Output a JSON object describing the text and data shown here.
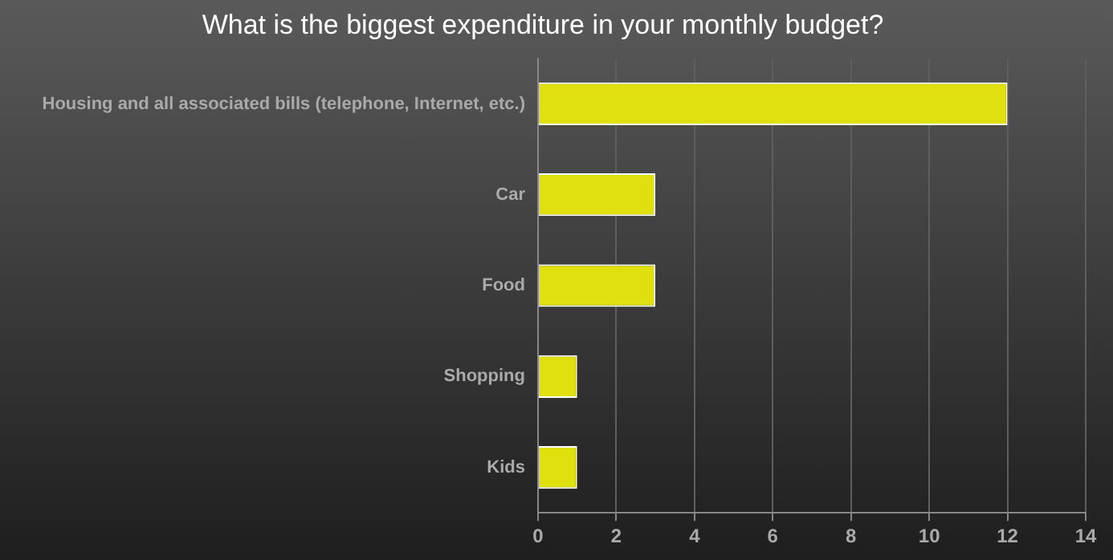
{
  "chart_data": {
    "type": "bar",
    "orientation": "horizontal",
    "title": "What is the biggest expenditure in your monthly budget?",
    "categories": [
      "Housing and all associated bills (telephone, Internet, etc.)",
      "Car",
      "Food",
      "Shopping",
      "Kids"
    ],
    "values": [
      12,
      3,
      3,
      1,
      1
    ],
    "color": "#dfe00e",
    "xlim": [
      0,
      14
    ],
    "xticks": [
      0,
      2,
      4,
      6,
      8,
      10,
      12,
      14
    ],
    "grid": "x",
    "legend": false
  }
}
